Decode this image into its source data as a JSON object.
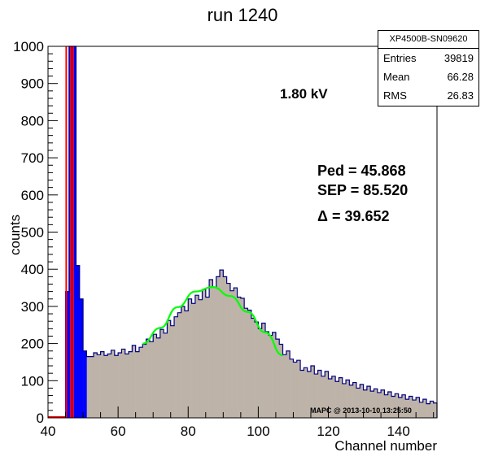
{
  "chart_data": {
    "type": "histogram",
    "title": "run 1240",
    "xlabel": "Channel number",
    "ylabel": "counts",
    "xlim": [
      40,
      151
    ],
    "ylim": [
      0,
      1000
    ],
    "bin_width": 1,
    "x_ticks": [
      40,
      60,
      80,
      100,
      120,
      140
    ],
    "y_ticks": [
      0,
      100,
      200,
      300,
      400,
      500,
      600,
      700,
      800,
      900,
      1000
    ],
    "x_tick_labels": [
      "40",
      "60",
      "80",
      "100",
      "120",
      "140"
    ],
    "y_tick_labels": [
      "0",
      "100",
      "200",
      "300",
      "400",
      "500",
      "600",
      "700",
      "800",
      "900",
      "1000"
    ],
    "fill_color": "#bdb3a8",
    "line_color": "#000080",
    "ped_color": "#0000ff",
    "marker_color": "#ff0000",
    "fit_color": "#00ff00",
    "bins": [
      [
        45,
        340
      ],
      [
        46,
        1000
      ],
      [
        47,
        1000
      ],
      [
        48,
        410
      ],
      [
        49,
        320
      ],
      [
        50,
        180
      ],
      [
        51,
        165
      ],
      [
        52,
        165
      ],
      [
        53,
        175
      ],
      [
        54,
        170
      ],
      [
        55,
        178
      ],
      [
        56,
        168
      ],
      [
        57,
        172
      ],
      [
        58,
        182
      ],
      [
        59,
        168
      ],
      [
        60,
        175
      ],
      [
        61,
        185
      ],
      [
        62,
        172
      ],
      [
        63,
        178
      ],
      [
        64,
        195
      ],
      [
        65,
        178
      ],
      [
        66,
        190
      ],
      [
        67,
        198
      ],
      [
        68,
        212
      ],
      [
        69,
        205
      ],
      [
        70,
        225
      ],
      [
        71,
        215
      ],
      [
        72,
        238
      ],
      [
        73,
        228
      ],
      [
        74,
        262
      ],
      [
        75,
        248
      ],
      [
        76,
        272
      ],
      [
        77,
        283
      ],
      [
        78,
        300
      ],
      [
        79,
        288
      ],
      [
        80,
        320
      ],
      [
        81,
        308
      ],
      [
        82,
        330
      ],
      [
        83,
        318
      ],
      [
        84,
        345
      ],
      [
        85,
        325
      ],
      [
        86,
        372
      ],
      [
        87,
        352
      ],
      [
        88,
        380
      ],
      [
        89,
        398
      ],
      [
        90,
        380
      ],
      [
        91,
        362
      ],
      [
        92,
        342
      ],
      [
        93,
        350
      ],
      [
        94,
        325
      ],
      [
        95,
        322
      ],
      [
        96,
        295
      ],
      [
        97,
        290
      ],
      [
        98,
        268
      ],
      [
        99,
        258
      ],
      [
        100,
        240
      ],
      [
        101,
        255
      ],
      [
        102,
        232
      ],
      [
        103,
        222
      ],
      [
        104,
        230
      ],
      [
        105,
        212
      ],
      [
        106,
        198
      ],
      [
        107,
        170
      ],
      [
        108,
        180
      ],
      [
        109,
        158
      ],
      [
        110,
        150
      ],
      [
        111,
        155
      ],
      [
        112,
        128
      ],
      [
        113,
        135
      ],
      [
        114,
        125
      ],
      [
        115,
        140
      ],
      [
        116,
        118
      ],
      [
        117,
        128
      ],
      [
        118,
        112
      ],
      [
        119,
        125
      ],
      [
        120,
        105
      ],
      [
        121,
        112
      ],
      [
        122,
        98
      ],
      [
        123,
        108
      ],
      [
        124,
        92
      ],
      [
        125,
        102
      ],
      [
        126,
        88
      ],
      [
        127,
        95
      ],
      [
        128,
        80
      ],
      [
        129,
        90
      ],
      [
        130,
        75
      ],
      [
        131,
        85
      ],
      [
        132,
        72
      ],
      [
        133,
        78
      ],
      [
        134,
        68
      ],
      [
        135,
        75
      ],
      [
        136,
        62
      ],
      [
        137,
        70
      ],
      [
        138,
        58
      ],
      [
        139,
        65
      ],
      [
        140,
        55
      ],
      [
        141,
        62
      ],
      [
        142,
        50
      ],
      [
        143,
        58
      ],
      [
        144,
        48
      ],
      [
        145,
        55
      ],
      [
        146,
        42
      ],
      [
        147,
        50
      ],
      [
        148,
        38
      ],
      [
        149,
        45
      ],
      [
        150,
        40
      ]
    ],
    "pedestal_ranges": [
      [
        45,
        51
      ]
    ],
    "marker_lines_x": [
      45.2,
      46.5,
      47.2
    ],
    "fit": {
      "x": [
        67,
        72,
        77,
        82,
        87,
        92,
        97,
        102,
        107
      ],
      "y": [
        200,
        242,
        298,
        340,
        352,
        328,
        285,
        230,
        168
      ]
    }
  },
  "statbox": {
    "name": "XP4500B-SN09620",
    "entries_label": "Entries",
    "entries": "39819",
    "mean_label": "Mean",
    "mean": "66.28",
    "rms_label": "RMS",
    "rms": "26.83"
  },
  "annotations": {
    "voltage": "1.80 kV",
    "ped": "Ped = 45.868",
    "sep": "SEP = 85.520",
    "delta": "Δ = 39.652",
    "stamp": "MAPC @ 2013-10-10 13:25:50"
  }
}
